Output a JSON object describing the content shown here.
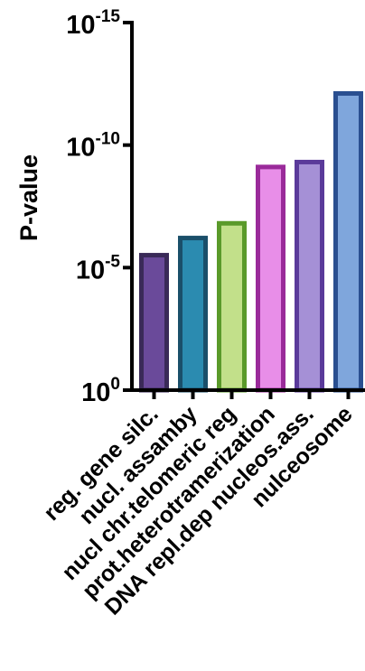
{
  "chart_data": {
    "type": "bar",
    "ylabel": "P-value",
    "xlabel": "",
    "y_scale": "log-inverted",
    "ylim_exponent": [
      0,
      -15
    ],
    "y_ticks": [
      {
        "base": "10",
        "exp": "0",
        "value_exponent": 0
      },
      {
        "base": "10",
        "exp": "-5",
        "value_exponent": -5
      },
      {
        "base": "10",
        "exp": "-10",
        "value_exponent": -10
      },
      {
        "base": "10",
        "exp": "-15",
        "value_exponent": -15
      }
    ],
    "categories": [
      "reg. gene silc.",
      "nucl. assamby",
      "nucl chr.telomeric reg",
      "prot.heterotramerization",
      "DNA repl.dep nucleos.ass.",
      "nulceosome"
    ],
    "values_exponent": [
      -5.6,
      -6.3,
      -6.9,
      -9.2,
      -9.4,
      -12.2
    ],
    "colors": [
      {
        "fill": "#6a4a9a",
        "stroke": "#3a2a58"
      },
      {
        "fill": "#2b8bb0",
        "stroke": "#1a4f6a"
      },
      {
        "fill": "#c2e08a",
        "stroke": "#5a9a2a"
      },
      {
        "fill": "#e88ee8",
        "stroke": "#9a2a9a"
      },
      {
        "fill": "#a590d6",
        "stroke": "#5a3a9a"
      },
      {
        "fill": "#7fa6dc",
        "stroke": "#2a4f90"
      }
    ],
    "grid": false,
    "legend": "none"
  }
}
